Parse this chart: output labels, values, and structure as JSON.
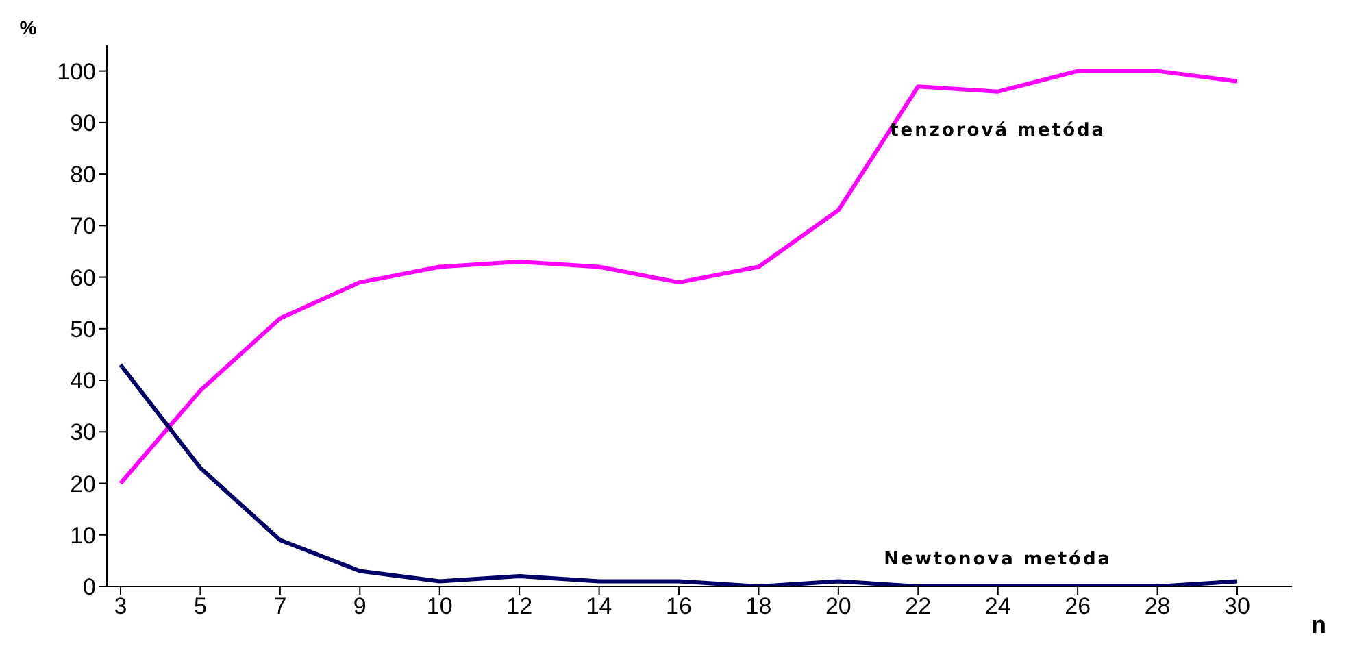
{
  "chart_data": {
    "type": "line",
    "xlabel": "n",
    "ylabel": "%",
    "categories": [
      "3",
      "5",
      "7",
      "9",
      "10",
      "12",
      "14",
      "16",
      "18",
      "20",
      "22",
      "24",
      "26",
      "28",
      "30"
    ],
    "series": [
      {
        "name": "tenzorová metóda",
        "color": "#ff00ff",
        "values": [
          20,
          38,
          52,
          59,
          62,
          63,
          62,
          59,
          62,
          73,
          97,
          96,
          100,
          100,
          98
        ]
      },
      {
        "name": "Newtonova metóda",
        "color": "#000066",
        "values": [
          43,
          23,
          9,
          3,
          1,
          2,
          1,
          1,
          0,
          1,
          0,
          0,
          0,
          0,
          1
        ]
      }
    ],
    "ylim": [
      0,
      105
    ],
    "yticks": [
      0,
      10,
      20,
      30,
      40,
      50,
      60,
      70,
      80,
      90,
      100
    ],
    "grid": false,
    "legend": false,
    "marker": "none",
    "line_style": "solid"
  }
}
